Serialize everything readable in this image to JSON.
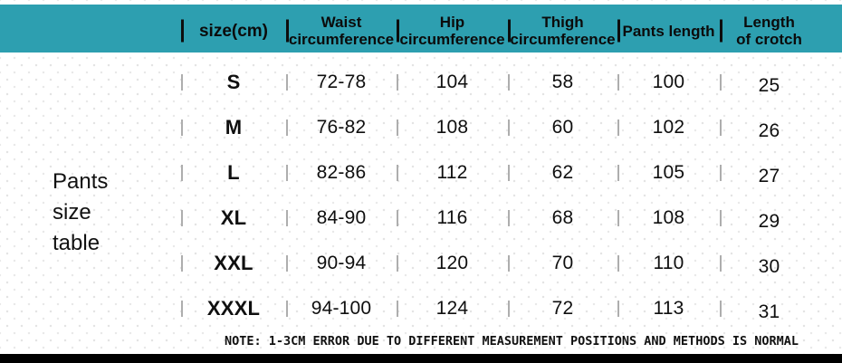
{
  "title": {
    "lines": [
      "Pants",
      "size",
      "table"
    ]
  },
  "header": {
    "cells": [
      {
        "l1": "size(cm)",
        "l2": ""
      },
      {
        "l1": "Waist",
        "l2": "circumference"
      },
      {
        "l1": "Hip",
        "l2": "circumference"
      },
      {
        "l1": "Thigh",
        "l2": "circumference"
      },
      {
        "l1": "Pants length",
        "l2": ""
      },
      {
        "l1": "Length",
        "l2": "of crotch"
      }
    ]
  },
  "note": "NOTE: 1-3CM ERROR DUE TO DIFFERENT MEASUREMENT POSITIONS AND METHODS IS NORMAL",
  "colors": {
    "header_bg": "#2d9fb0",
    "bottom_bar": "#000000"
  },
  "chart_data": {
    "type": "table",
    "title": "Pants size table",
    "columns": [
      "size(cm)",
      "Waist circumference",
      "Hip circumference",
      "Thigh circumference",
      "Pants length",
      "Length of crotch"
    ],
    "rows": [
      [
        "S",
        "72-78",
        "104",
        "58",
        "100",
        "25"
      ],
      [
        "M",
        "76-82",
        "108",
        "60",
        "102",
        "26"
      ],
      [
        "L",
        "82-86",
        "112",
        "62",
        "105",
        "27"
      ],
      [
        "XL",
        "84-90",
        "116",
        "68",
        "108",
        "29"
      ],
      [
        "XXL",
        "90-94",
        "120",
        "70",
        "110",
        "30"
      ],
      [
        "XXXL",
        "94-100",
        "124",
        "72",
        "113",
        "31"
      ]
    ],
    "note": "NOTE: 1-3CM ERROR DUE TO DIFFERENT MEASUREMENT POSITIONS AND METHODS IS NORMAL"
  }
}
